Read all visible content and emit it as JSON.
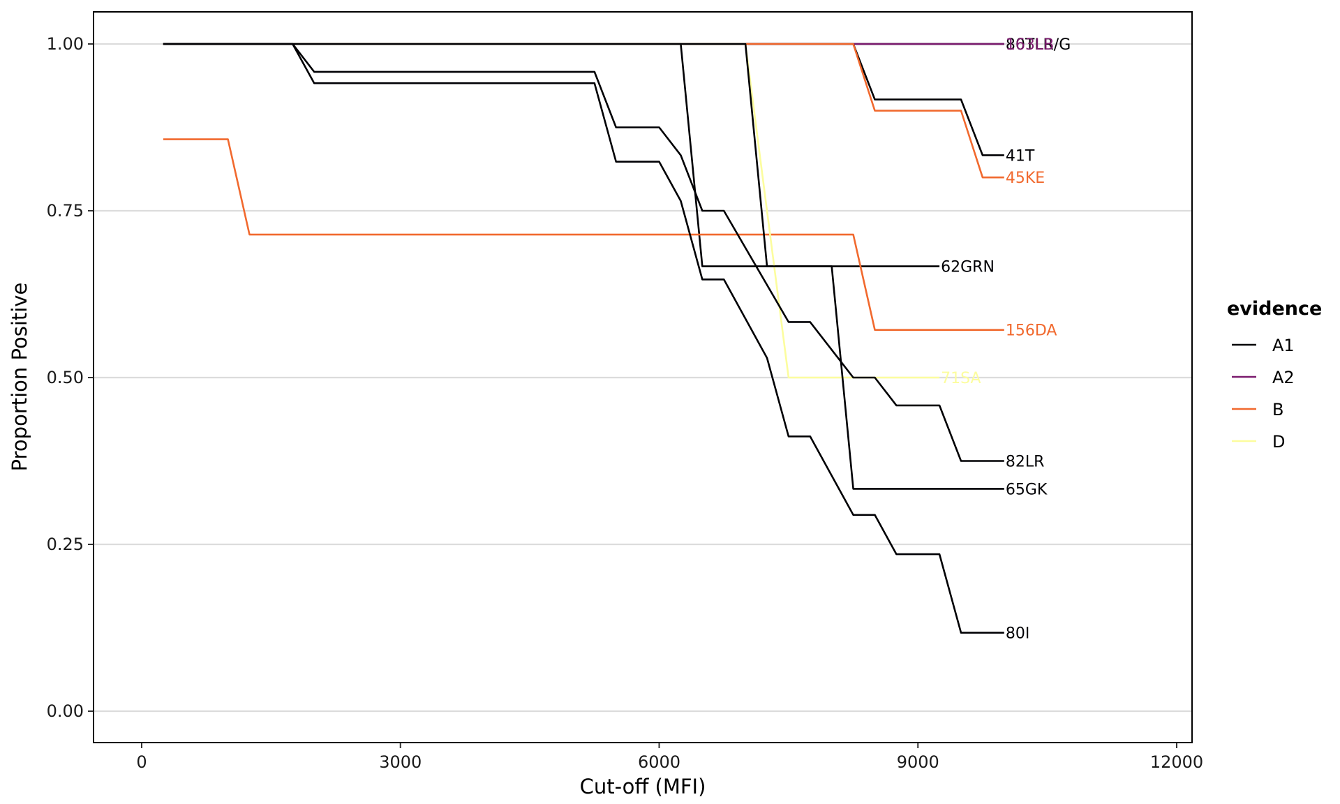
{
  "chart_data": {
    "type": "line",
    "title": "",
    "xlabel": "Cut-off (MFI)",
    "ylabel": "Proportion Positive",
    "xlim": [
      -500,
      12000
    ],
    "ylim": [
      -0.05,
      1.05
    ],
    "x_ticks": [
      0,
      3000,
      6000,
      9000,
      12000
    ],
    "x_tick_labels": [
      "0",
      "3000",
      "6000",
      "9000",
      "12000"
    ],
    "y_ticks": [
      0,
      0.25,
      0.5,
      0.75,
      1.0
    ],
    "y_tick_labels": [
      "0.00",
      "0.25",
      "0.50",
      "0.75",
      "1.00"
    ],
    "grid": "horizontal-major",
    "legend": {
      "title": "evidence",
      "placement": "right",
      "entries": [
        {
          "name": "A1",
          "color": "#000004"
        },
        {
          "name": "A2",
          "color": "#7B1B6E"
        },
        {
          "name": "B",
          "color": "#F1692E"
        },
        {
          "name": "D",
          "color": "#FCFD9E"
        }
      ]
    },
    "series": [
      {
        "name": "80TLR/G",
        "evidence": "A1",
        "x": [
          250,
          10000
        ],
        "y": [
          1.0,
          1.0
        ]
      },
      {
        "name": "163LB",
        "evidence": "A2",
        "x": [
          250,
          10000
        ],
        "y": [
          1.0,
          1.0
        ]
      },
      {
        "name": "41T",
        "evidence": "A1",
        "x": [
          250,
          8250,
          8500,
          9500,
          9750,
          10000
        ],
        "y": [
          1.0,
          1.0,
          0.9167,
          0.9167,
          0.8333,
          0.8333
        ]
      },
      {
        "name": "45KE",
        "evidence": "B",
        "x": [
          250,
          8250,
          8500,
          9500,
          9750,
          10000
        ],
        "y": [
          1.0,
          1.0,
          0.9,
          0.9,
          0.8,
          0.8
        ]
      },
      {
        "name": "62GRN",
        "evidence": "A1",
        "x": [
          250,
          6250,
          6500,
          9250
        ],
        "y": [
          1.0,
          1.0,
          0.6667,
          0.6667
        ]
      },
      {
        "name": "156DA",
        "evidence": "B",
        "x": [
          250,
          1000,
          1250,
          8250,
          8500,
          10000
        ],
        "y": [
          0.8571,
          0.8571,
          0.7143,
          0.7143,
          0.5714,
          0.5714
        ]
      },
      {
        "name": "71SA",
        "evidence": "D",
        "x": [
          250,
          7000,
          7500,
          9250
        ],
        "y": [
          1.0,
          1.0,
          0.5,
          0.5
        ]
      },
      {
        "name": "82LR",
        "evidence": "A1",
        "x": [
          250,
          1750,
          2000,
          5250,
          5500,
          6000,
          6250,
          6500,
          6750,
          7500,
          7750,
          8250,
          8500,
          8750,
          9250,
          9500,
          10000
        ],
        "y": [
          1.0,
          1.0,
          0.9583,
          0.9583,
          0.875,
          0.875,
          0.8333,
          0.75,
          0.75,
          0.5833,
          0.5833,
          0.5,
          0.5,
          0.4583,
          0.4583,
          0.375,
          0.375
        ]
      },
      {
        "name": "65GK",
        "evidence": "A1",
        "x": [
          250,
          7000,
          7250,
          8000,
          8250,
          10000
        ],
        "y": [
          1.0,
          1.0,
          0.6667,
          0.6667,
          0.3333,
          0.3333
        ]
      },
      {
        "name": "80I",
        "evidence": "A1",
        "x": [
          250,
          1750,
          2000,
          5250,
          5500,
          6000,
          6250,
          6500,
          6750,
          7250,
          7500,
          7750,
          8250,
          8500,
          8750,
          9250,
          9500,
          10000
        ],
        "y": [
          1.0,
          1.0,
          0.9412,
          0.9412,
          0.8235,
          0.8235,
          0.7647,
          0.6471,
          0.6471,
          0.5294,
          0.4118,
          0.4118,
          0.2941,
          0.2941,
          0.2353,
          0.2353,
          0.1176,
          0.1176
        ]
      }
    ]
  }
}
